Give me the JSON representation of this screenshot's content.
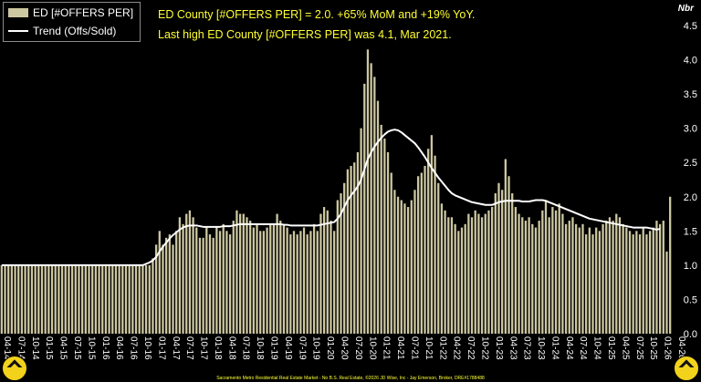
{
  "legend": {
    "bar_label": "ED [#OFFERS PER]",
    "line_label": "Trend (Offs/Sold)"
  },
  "headline": {
    "line1": "ED County [#OFFERS PER] = 2.0. +65% MoM and +19% YoY.",
    "line2": "Last high ED County [#OFFERS PER] was 4.1, Mar 2021."
  },
  "unit_label": "Nbr",
  "footer": "Sacramento Metro Residential Real Estate Market - No B.S. Real Estate, ©2026 JD Wise, Inc - Jay Emerson, Broker, DRE#1788488",
  "colors": {
    "background": "#000000",
    "bar": "#cdc7a1",
    "trend": "#ffffff",
    "headline": "#ffff33",
    "axis_text": "#ffffff"
  },
  "chart_data": {
    "type": "bar",
    "title": "",
    "ylabel": "Nbr",
    "ylim": [
      0,
      4.5
    ],
    "grid": false,
    "legend_position": "top-left",
    "yticks": [
      "0.0",
      "0.5",
      "1.0",
      "1.5",
      "2.0",
      "2.5",
      "3.0",
      "3.5",
      "4.0",
      "4.5"
    ],
    "xtick_labels": [
      "04-14",
      "07-14",
      "10-14",
      "01-15",
      "04-15",
      "07-15",
      "10-15",
      "01-16",
      "04-16",
      "07-16",
      "10-16",
      "01-17",
      "04-17",
      "07-17",
      "10-17",
      "01-18",
      "04-18",
      "07-18",
      "10-18",
      "01-19",
      "04-19",
      "07-19",
      "10-19",
      "01-20",
      "04-20",
      "07-20",
      "10-20",
      "01-21",
      "04-21",
      "07-21",
      "10-21",
      "01-22",
      "04-22",
      "07-22",
      "10-22",
      "01-23",
      "04-23",
      "07-23",
      "10-23",
      "01-24",
      "04-24",
      "07-24",
      "10-24",
      "01-25",
      "04-25",
      "07-25",
      "10-25",
      "01-26",
      "04-26"
    ],
    "series": [
      {
        "name": "ED [#OFFERS PER]",
        "type": "bar",
        "values": [
          1.0,
          1.0,
          1.0,
          1.0,
          1.0,
          1.0,
          1.0,
          1.0,
          1.0,
          1.0,
          1.0,
          1.0,
          1.0,
          1.0,
          1.0,
          1.0,
          1.0,
          1.0,
          1.0,
          1.0,
          1.0,
          1.0,
          1.0,
          1.0,
          1.0,
          1.0,
          1.0,
          1.0,
          1.0,
          1.0,
          1.0,
          1.0,
          1.0,
          1.0,
          1.0,
          1.0,
          1.0,
          1.0,
          1.0,
          1.0,
          1.0,
          1.0,
          1.0,
          1.0,
          1.0,
          1.1,
          1.3,
          1.5,
          1.3,
          1.4,
          1.45,
          1.3,
          1.5,
          1.7,
          1.6,
          1.75,
          1.8,
          1.7,
          1.55,
          1.4,
          1.4,
          1.55,
          1.45,
          1.4,
          1.55,
          1.5,
          1.6,
          1.5,
          1.45,
          1.65,
          1.8,
          1.75,
          1.75,
          1.7,
          1.65,
          1.55,
          1.6,
          1.5,
          1.5,
          1.55,
          1.6,
          1.6,
          1.75,
          1.65,
          1.6,
          1.55,
          1.45,
          1.5,
          1.45,
          1.5,
          1.55,
          1.45,
          1.5,
          1.6,
          1.5,
          1.75,
          1.85,
          1.8,
          1.65,
          1.5,
          1.95,
          2.05,
          2.2,
          2.4,
          2.45,
          2.5,
          2.65,
          3.0,
          3.65,
          4.15,
          3.95,
          3.75,
          3.4,
          3.05,
          2.85,
          2.65,
          2.35,
          2.1,
          2.0,
          1.95,
          1.9,
          1.85,
          1.95,
          2.1,
          2.3,
          2.35,
          2.45,
          2.7,
          2.9,
          2.6,
          2.2,
          1.9,
          1.8,
          1.7,
          1.7,
          1.6,
          1.5,
          1.55,
          1.6,
          1.75,
          1.7,
          1.8,
          1.75,
          1.7,
          1.75,
          1.8,
          1.85,
          2.05,
          2.2,
          2.1,
          2.55,
          2.3,
          2.05,
          1.85,
          1.75,
          1.7,
          1.65,
          1.7,
          1.6,
          1.55,
          1.65,
          1.8,
          1.95,
          1.7,
          1.85,
          1.8,
          1.9,
          1.75,
          1.6,
          1.65,
          1.7,
          1.6,
          1.55,
          1.6,
          1.45,
          1.55,
          1.45,
          1.55,
          1.5,
          1.6,
          1.65,
          1.7,
          1.65,
          1.75,
          1.7,
          1.6,
          1.55,
          1.5,
          1.45,
          1.5,
          1.45,
          1.55,
          1.45,
          1.5,
          1.55,
          1.65,
          1.6,
          1.65,
          1.2,
          2.0
        ]
      },
      {
        "name": "Trend (Offs/Sold)",
        "type": "line",
        "values": [
          1.0,
          1.0,
          1.0,
          1.0,
          1.0,
          1.0,
          1.0,
          1.0,
          1.0,
          1.0,
          1.0,
          1.0,
          1.0,
          1.0,
          1.0,
          1.0,
          1.0,
          1.0,
          1.0,
          1.0,
          1.0,
          1.0,
          1.0,
          1.0,
          1.0,
          1.0,
          1.0,
          1.0,
          1.0,
          1.0,
          1.0,
          1.0,
          1.0,
          1.0,
          1.0,
          1.0,
          1.0,
          1.0,
          1.0,
          1.0,
          1.0,
          1.0,
          1.0,
          1.02,
          1.04,
          1.07,
          1.12,
          1.2,
          1.27,
          1.33,
          1.39,
          1.44,
          1.48,
          1.52,
          1.55,
          1.57,
          1.58,
          1.58,
          1.58,
          1.57,
          1.56,
          1.56,
          1.56,
          1.56,
          1.56,
          1.56,
          1.57,
          1.57,
          1.57,
          1.58,
          1.59,
          1.6,
          1.6,
          1.6,
          1.6,
          1.6,
          1.6,
          1.6,
          1.6,
          1.6,
          1.6,
          1.6,
          1.6,
          1.6,
          1.59,
          1.59,
          1.58,
          1.58,
          1.58,
          1.58,
          1.58,
          1.58,
          1.58,
          1.58,
          1.58,
          1.59,
          1.6,
          1.61,
          1.62,
          1.63,
          1.68,
          1.75,
          1.85,
          1.95,
          2.02,
          2.08,
          2.15,
          2.25,
          2.4,
          2.55,
          2.65,
          2.73,
          2.8,
          2.86,
          2.91,
          2.95,
          2.97,
          2.98,
          2.97,
          2.94,
          2.9,
          2.86,
          2.82,
          2.78,
          2.72,
          2.65,
          2.58,
          2.5,
          2.42,
          2.35,
          2.28,
          2.22,
          2.16,
          2.1,
          2.05,
          2.02,
          2.0,
          1.98,
          1.96,
          1.94,
          1.92,
          1.91,
          1.9,
          1.89,
          1.88,
          1.88,
          1.88,
          1.9,
          1.92,
          1.93,
          1.94,
          1.94,
          1.94,
          1.94,
          1.94,
          1.93,
          1.93,
          1.93,
          1.94,
          1.95,
          1.95,
          1.95,
          1.94,
          1.92,
          1.9,
          1.88,
          1.86,
          1.84,
          1.82,
          1.8,
          1.78,
          1.76,
          1.74,
          1.72,
          1.7,
          1.68,
          1.67,
          1.66,
          1.65,
          1.64,
          1.63,
          1.62,
          1.61,
          1.6,
          1.59,
          1.58,
          1.57,
          1.56,
          1.55,
          1.55,
          1.55,
          1.55,
          1.55,
          1.54,
          1.53,
          1.52,
          1.53
        ]
      }
    ]
  }
}
